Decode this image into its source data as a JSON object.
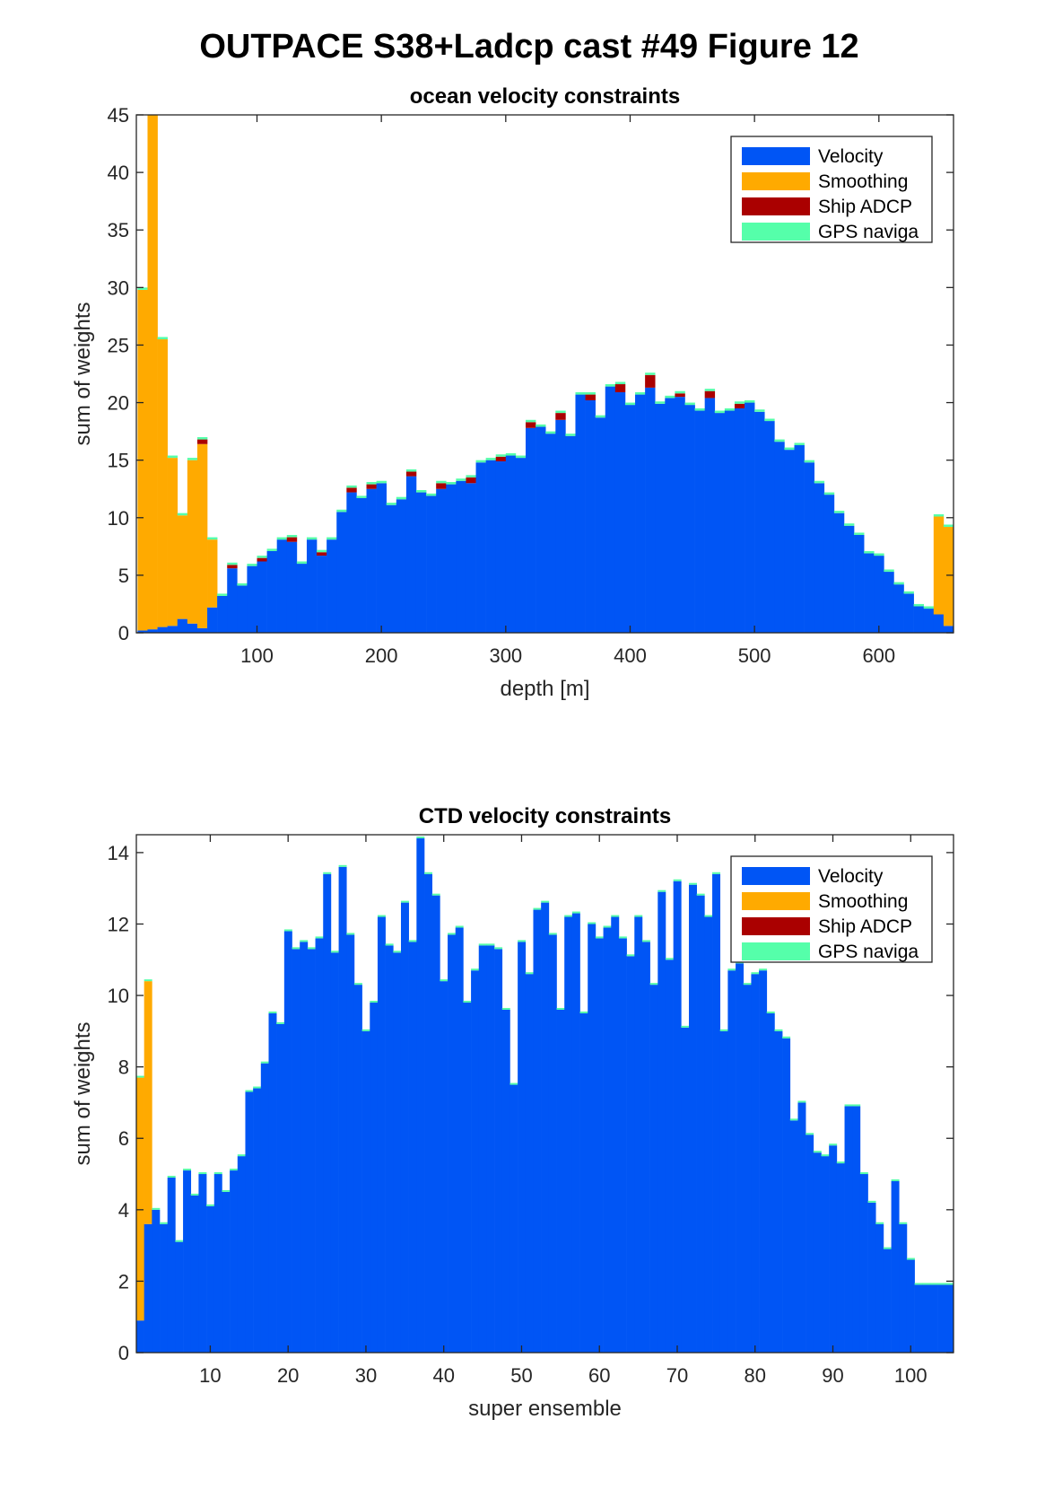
{
  "figure_title": "OUTPACE S38+Ladcp cast #49  Figure 12",
  "colors": {
    "velocity": "#0055f5",
    "smoothing": "#ffaa00",
    "ship_adcp": "#aa0000",
    "gps_navigation": "#55ffaa"
  },
  "chart_data": [
    {
      "type": "bar",
      "stacked": true,
      "title": "ocean velocity constraints",
      "xlabel": "depth [m]",
      "ylabel": "sum of weights",
      "xlim": [
        3,
        660
      ],
      "ylim": [
        0,
        45
      ],
      "xticks": [
        100,
        200,
        300,
        400,
        500,
        600
      ],
      "yticks": [
        0,
        5,
        10,
        15,
        20,
        25,
        30,
        35,
        40,
        45
      ],
      "bin_width": 8,
      "legend": {
        "position": "top-right",
        "entries": [
          "Velocity",
          "Smoothing",
          "Ship ADCP",
          "GPS naviga"
        ]
      },
      "x": [
        8,
        16,
        24,
        32,
        40,
        48,
        56,
        64,
        72,
        80,
        88,
        96,
        104,
        112,
        120,
        128,
        136,
        144,
        152,
        160,
        168,
        176,
        184,
        192,
        200,
        208,
        216,
        224,
        232,
        240,
        248,
        256,
        264,
        272,
        280,
        288,
        296,
        304,
        312,
        320,
        328,
        336,
        344,
        352,
        360,
        368,
        376,
        384,
        392,
        400,
        408,
        416,
        424,
        432,
        440,
        448,
        456,
        464,
        472,
        480,
        488,
        496,
        504,
        512,
        520,
        528,
        536,
        544,
        552,
        560,
        568,
        576,
        584,
        592,
        600,
        608,
        616,
        624,
        632,
        640,
        648,
        656
      ],
      "series": [
        {
          "name": "Velocity",
          "values": [
            0.2,
            0.3,
            0.5,
            0.6,
            1.2,
            0.8,
            0.4,
            2.2,
            3.2,
            5.6,
            4.1,
            5.8,
            6.2,
            7.1,
            8.1,
            7.9,
            6.0,
            8.1,
            6.7,
            8.1,
            10.5,
            12.2,
            11.7,
            12.5,
            13.0,
            11.1,
            11.6,
            13.6,
            12.2,
            11.9,
            12.5,
            12.9,
            13.2,
            13.0,
            14.8,
            15.0,
            14.9,
            15.4,
            15.2,
            17.8,
            17.9,
            17.3,
            18.5,
            17.1,
            20.7,
            20.2,
            18.7,
            21.4,
            20.9,
            19.8,
            20.7,
            21.3,
            19.9,
            20.4,
            20.5,
            19.8,
            19.3,
            20.4,
            19.1,
            19.3,
            19.5,
            20.0,
            19.2,
            18.4,
            16.6,
            15.9,
            16.3,
            14.8,
            13.0,
            12.0,
            10.4,
            9.3,
            8.5,
            6.9,
            6.7,
            5.3,
            4.2,
            3.4,
            2.3,
            2.1,
            1.6,
            0.6
          ]
        },
        {
          "name": "Smoothing",
          "values": [
            29.6,
            44.8,
            25.0,
            14.6,
            9.0,
            14.2,
            16.0,
            5.9,
            0,
            0,
            0,
            0,
            0,
            0,
            0,
            0,
            0,
            0,
            0,
            0,
            0,
            0,
            0,
            0,
            0,
            0,
            0,
            0,
            0,
            0,
            0,
            0,
            0,
            0,
            0,
            0,
            0,
            0,
            0,
            0,
            0,
            0,
            0,
            0,
            0,
            0,
            0,
            0,
            0,
            0,
            0,
            0,
            0,
            0,
            0,
            0,
            0,
            0,
            0,
            0,
            0,
            0,
            0,
            0,
            0,
            0,
            0,
            0,
            0,
            0,
            0,
            0,
            0,
            0,
            0,
            0,
            0,
            0,
            0,
            0,
            8.5,
            8.6
          ]
        },
        {
          "name": "Ship ADCP",
          "values": [
            0,
            0,
            0,
            0,
            0,
            0,
            0.4,
            0,
            0,
            0.3,
            0,
            0,
            0.3,
            0,
            0,
            0.4,
            0,
            0,
            0.3,
            0,
            0,
            0.4,
            0,
            0.4,
            0,
            0,
            0,
            0.4,
            0,
            0,
            0.5,
            0,
            0,
            0.5,
            0,
            0,
            0.4,
            0,
            0,
            0.5,
            0,
            0,
            0.6,
            0,
            0,
            0.5,
            0,
            0,
            0.7,
            0,
            0,
            1.1,
            0,
            0,
            0.3,
            0,
            0,
            0.6,
            0,
            0,
            0.4,
            0,
            0,
            0,
            0,
            0,
            0,
            0,
            0,
            0,
            0,
            0,
            0,
            0,
            0,
            0,
            0,
            0,
            0,
            0,
            0,
            0
          ]
        },
        {
          "name": "GPS naviga",
          "values": [
            0.2,
            0.2,
            0.2,
            0.2,
            0.2,
            0.2,
            0.2,
            0.2,
            0.2,
            0.2,
            0.2,
            0.2,
            0.2,
            0.2,
            0.2,
            0.2,
            0.2,
            0.2,
            0.2,
            0.2,
            0.2,
            0.2,
            0.2,
            0.2,
            0.2,
            0.2,
            0.2,
            0.2,
            0.2,
            0.2,
            0.2,
            0.2,
            0.2,
            0.2,
            0.2,
            0.2,
            0.2,
            0.2,
            0.2,
            0.2,
            0.2,
            0.2,
            0.2,
            0.2,
            0.2,
            0.2,
            0.2,
            0.2,
            0.2,
            0.2,
            0.2,
            0.2,
            0.2,
            0.2,
            0.2,
            0.2,
            0.2,
            0.2,
            0.2,
            0.2,
            0.2,
            0.2,
            0.2,
            0.2,
            0.2,
            0.2,
            0.2,
            0.2,
            0.2,
            0.2,
            0.2,
            0.2,
            0.2,
            0.2,
            0.2,
            0.2,
            0.2,
            0.2,
            0.2,
            0.2,
            0.2,
            0.2
          ]
        }
      ]
    },
    {
      "type": "bar",
      "stacked": true,
      "title": "CTD velocity constraints",
      "xlabel": "super ensemble",
      "ylabel": "sum of weights",
      "xlim": [
        0.5,
        105.5
      ],
      "ylim": [
        0,
        14.5
      ],
      "xticks": [
        10,
        20,
        30,
        40,
        50,
        60,
        70,
        80,
        90,
        100
      ],
      "yticks": [
        0,
        2,
        4,
        6,
        8,
        10,
        12,
        14
      ],
      "bin_width": 1,
      "legend": {
        "position": "top-right",
        "entries": [
          "Velocity",
          "Smoothing",
          "Ship ADCP",
          "GPS naviga"
        ]
      },
      "x": [
        1,
        2,
        3,
        4,
        5,
        6,
        7,
        8,
        9,
        10,
        11,
        12,
        13,
        14,
        15,
        16,
        17,
        18,
        19,
        20,
        21,
        22,
        23,
        24,
        25,
        26,
        27,
        28,
        29,
        30,
        31,
        32,
        33,
        34,
        35,
        36,
        37,
        38,
        39,
        40,
        41,
        42,
        43,
        44,
        45,
        46,
        47,
        48,
        49,
        50,
        51,
        52,
        53,
        54,
        55,
        56,
        57,
        58,
        59,
        60,
        61,
        62,
        63,
        64,
        65,
        66,
        67,
        68,
        69,
        70,
        71,
        72,
        73,
        74,
        75,
        76,
        77,
        78,
        79,
        80,
        81,
        82,
        83,
        84,
        85,
        86,
        87,
        88,
        89,
        90,
        91,
        92,
        93,
        94,
        95,
        96,
        97,
        98,
        99,
        100,
        101,
        102,
        103,
        104,
        105
      ],
      "series": [
        {
          "name": "Velocity",
          "values": [
            0.9,
            3.6,
            4.0,
            3.6,
            4.9,
            3.1,
            5.1,
            4.4,
            5.0,
            4.1,
            5.0,
            4.5,
            5.1,
            5.5,
            7.3,
            7.4,
            8.1,
            9.5,
            9.2,
            11.8,
            11.3,
            11.5,
            11.3,
            11.6,
            13.4,
            11.2,
            13.6,
            11.7,
            10.3,
            9.0,
            9.8,
            12.2,
            11.4,
            11.2,
            12.6,
            11.5,
            14.4,
            13.4,
            12.8,
            10.4,
            11.7,
            11.9,
            9.8,
            10.7,
            11.4,
            11.4,
            11.3,
            9.6,
            7.5,
            11.5,
            10.6,
            12.4,
            12.6,
            11.7,
            9.6,
            12.2,
            12.3,
            9.5,
            12.0,
            11.6,
            11.9,
            12.2,
            11.6,
            11.1,
            12.2,
            11.5,
            10.3,
            12.9,
            11.0,
            13.2,
            9.1,
            13.1,
            12.8,
            12.2,
            13.4,
            9.0,
            10.7,
            10.9,
            10.3,
            10.6,
            10.7,
            9.5,
            9.0,
            8.8,
            6.5,
            7.0,
            6.1,
            5.6,
            5.5,
            5.8,
            5.3,
            6.9,
            6.9,
            5.0,
            4.2,
            3.6,
            2.9,
            4.8,
            3.6,
            2.6,
            1.9,
            1.9,
            1.9,
            1.9,
            1.9
          ]
        },
        {
          "name": "Smoothing",
          "values": [
            6.8,
            6.8,
            0,
            0,
            0,
            0,
            0,
            0,
            0,
            0,
            0,
            0,
            0,
            0,
            0,
            0,
            0,
            0,
            0,
            0,
            0,
            0,
            0,
            0,
            0,
            0,
            0,
            0,
            0,
            0,
            0,
            0,
            0,
            0,
            0,
            0,
            0,
            0,
            0,
            0,
            0,
            0,
            0,
            0,
            0,
            0,
            0,
            0,
            0,
            0,
            0,
            0,
            0,
            0,
            0,
            0,
            0,
            0,
            0,
            0,
            0,
            0,
            0,
            0,
            0,
            0,
            0,
            0,
            0,
            0,
            0,
            0,
            0,
            0,
            0,
            0,
            0,
            0,
            0,
            0,
            0,
            0,
            0,
            0,
            0,
            0,
            0,
            0,
            0,
            0,
            0,
            0,
            0,
            0,
            0,
            0,
            0,
            0,
            0,
            0,
            0,
            0,
            0,
            0,
            0
          ]
        },
        {
          "name": "Ship ADCP",
          "values": [
            0,
            0,
            0,
            0,
            0,
            0,
            0,
            0,
            0,
            0,
            0,
            0,
            0,
            0,
            0,
            0,
            0,
            0,
            0,
            0,
            0,
            0,
            0,
            0,
            0,
            0,
            0,
            0,
            0,
            0,
            0,
            0,
            0,
            0,
            0,
            0,
            0,
            0,
            0,
            0,
            0,
            0,
            0,
            0,
            0,
            0,
            0,
            0,
            0,
            0,
            0,
            0,
            0,
            0,
            0,
            0,
            0,
            0,
            0,
            0,
            0,
            0,
            0,
            0,
            0,
            0,
            0,
            0,
            0,
            0,
            0,
            0,
            0,
            0,
            0,
            0,
            0,
            0,
            0,
            0,
            0,
            0,
            0,
            0,
            0,
            0,
            0,
            0,
            0,
            0,
            0,
            0,
            0,
            0,
            0,
            0,
            0,
            0,
            0,
            0,
            0,
            0,
            0,
            0,
            0
          ]
        },
        {
          "name": "GPS naviga",
          "values": [
            0.05,
            0.05,
            0.05,
            0.05,
            0.05,
            0.05,
            0.05,
            0.05,
            0.05,
            0.05,
            0.05,
            0.05,
            0.05,
            0.05,
            0.05,
            0.05,
            0.05,
            0.05,
            0.05,
            0.05,
            0.05,
            0.05,
            0.05,
            0.05,
            0.05,
            0.05,
            0.05,
            0.05,
            0.05,
            0.05,
            0.05,
            0.05,
            0.05,
            0.05,
            0.05,
            0.05,
            0.05,
            0.05,
            0.05,
            0.05,
            0.05,
            0.05,
            0.05,
            0.05,
            0.05,
            0.05,
            0.05,
            0.05,
            0.05,
            0.05,
            0.05,
            0.05,
            0.05,
            0.05,
            0.05,
            0.05,
            0.05,
            0.05,
            0.05,
            0.05,
            0.05,
            0.05,
            0.05,
            0.05,
            0.05,
            0.05,
            0.05,
            0.05,
            0.05,
            0.05,
            0.05,
            0.05,
            0.05,
            0.05,
            0.05,
            0.05,
            0.05,
            0.05,
            0.05,
            0.05,
            0.05,
            0.05,
            0.05,
            0.05,
            0.05,
            0.05,
            0.05,
            0.05,
            0.05,
            0.05,
            0.05,
            0.05,
            0.05,
            0.05,
            0.05,
            0.05,
            0.05,
            0.05,
            0.05,
            0.05,
            0.05,
            0.05,
            0.05,
            0.05,
            0.05
          ]
        }
      ]
    }
  ]
}
